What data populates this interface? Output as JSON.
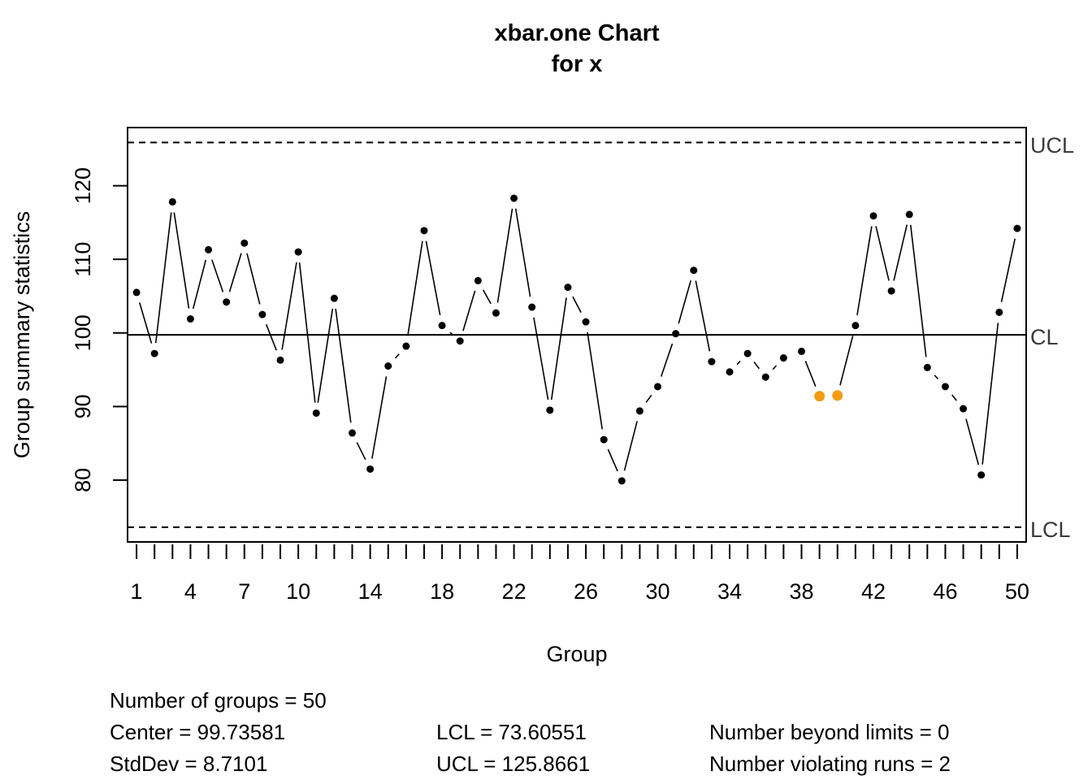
{
  "chart_data": {
    "type": "line",
    "chart_kind": "xbar.one control chart",
    "title": "xbar.one Chart",
    "subtitle": "for x",
    "xlabel": "Group",
    "ylabel": "Group summary statistics",
    "xlim": [
      0.5,
      50.5
    ],
    "ylim": [
      71.6,
      127.9
    ],
    "x_tick_labels": [
      "1",
      "4",
      "7",
      "10",
      "14",
      "18",
      "22",
      "26",
      "30",
      "34",
      "38",
      "42",
      "46",
      "50"
    ],
    "y_ticks": [
      80,
      90,
      100,
      110,
      120
    ],
    "limit_labels": {
      "ucl": "UCL",
      "cl": "CL",
      "lcl": "LCL"
    },
    "center": 99.73581,
    "lcl": 73.60551,
    "ucl": 125.8661,
    "x": [
      1,
      2,
      3,
      4,
      5,
      6,
      7,
      8,
      9,
      10,
      11,
      12,
      13,
      14,
      15,
      16,
      17,
      18,
      19,
      20,
      21,
      22,
      23,
      24,
      25,
      26,
      27,
      28,
      29,
      30,
      31,
      32,
      33,
      34,
      35,
      36,
      37,
      38,
      39,
      40,
      41,
      42,
      43,
      44,
      45,
      46,
      47,
      48,
      49,
      50
    ],
    "values": [
      105.5,
      97.2,
      117.8,
      101.9,
      111.3,
      104.2,
      112.2,
      102.5,
      96.3,
      111.0,
      89.1,
      104.7,
      86.4,
      81.5,
      95.5,
      98.2,
      113.9,
      101.0,
      98.9,
      107.1,
      102.7,
      118.3,
      103.5,
      89.5,
      106.2,
      101.5,
      85.5,
      79.9,
      89.4,
      92.7,
      99.9,
      108.5,
      96.1,
      94.7,
      97.2,
      94.0,
      96.6,
      97.5,
      91.4,
      91.5,
      101.0,
      115.9,
      105.7,
      116.1,
      95.3,
      92.7,
      89.7,
      80.7,
      102.8,
      114.2
    ],
    "violating_runs_groups": [
      39,
      40
    ],
    "colors": {
      "point": "#000000",
      "violation": "#f39c12",
      "frame": "#000000",
      "limit_label": "#3a3a3a"
    }
  },
  "summary": {
    "number_of_groups": "Number of groups = 50",
    "center": "Center = 99.73581",
    "stddev": "StdDev = 8.7101",
    "lcl": "LCL = 73.60551",
    "ucl": "UCL = 125.8661",
    "beyond_limits": "Number beyond limits = 0",
    "violating_runs": "Number violating runs = 2"
  }
}
